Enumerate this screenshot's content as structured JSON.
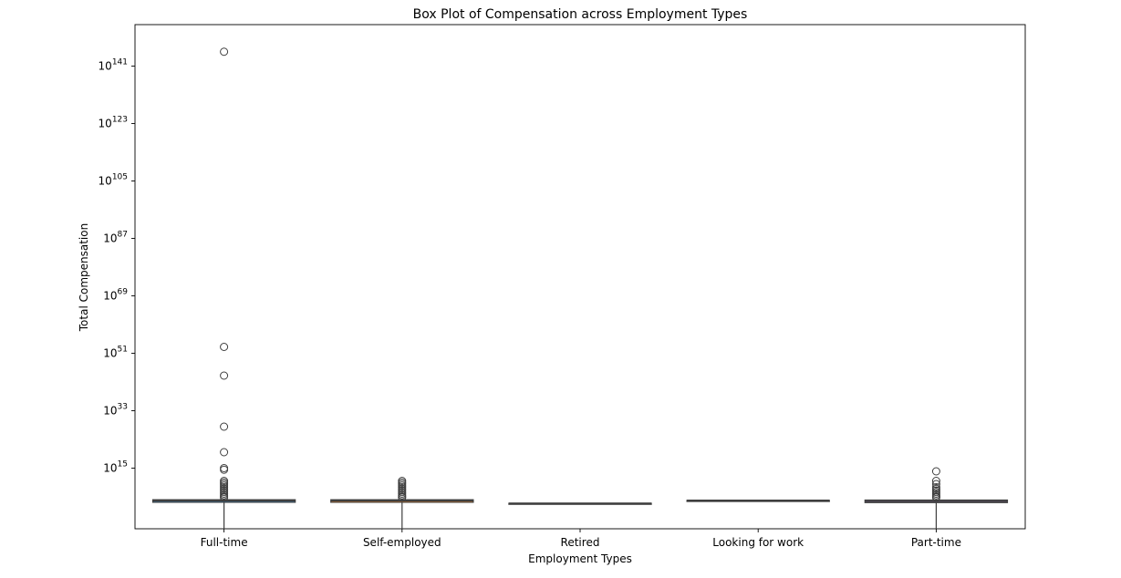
{
  "chart_data": {
    "type": "box",
    "title": "Box Plot of Compensation across Employment Types",
    "xlabel": "Employment Types",
    "ylabel": "Total Compensation",
    "yscale": "log",
    "ylim_exponent": [
      -4,
      154
    ],
    "yticks": [
      {
        "base": "10",
        "exp": "141"
      },
      {
        "base": "10",
        "exp": "123"
      },
      {
        "base": "10",
        "exp": "105"
      },
      {
        "base": "10",
        "exp": "87"
      },
      {
        "base": "10",
        "exp": "69"
      },
      {
        "base": "10",
        "exp": "51"
      },
      {
        "base": "10",
        "exp": "33"
      },
      {
        "base": "10",
        "exp": "15"
      }
    ],
    "categories": [
      "Full-time",
      "Self-employed",
      "Retired",
      "Looking for work",
      "Part-time"
    ],
    "boxes": [
      {
        "category": "Full-time",
        "whisker_low_exp": -4,
        "q1_exp": 4.3,
        "median_exp": 4.8,
        "q3_exp": 5.1,
        "whisker_high_exp": 5.3,
        "outliers_exp": [
          145.5,
          53,
          44,
          28,
          20,
          15,
          14.5,
          11,
          10.5,
          10,
          9.5,
          9,
          8.5,
          8,
          7.5,
          7,
          6.5,
          6,
          5.8
        ]
      },
      {
        "category": "Self-employed",
        "whisker_low_exp": -4,
        "q1_exp": 4.3,
        "median_exp": 4.8,
        "q3_exp": 5.1,
        "whisker_high_exp": 5.3,
        "outliers_exp": [
          11,
          10.5,
          10,
          9.5,
          9,
          8.5,
          8,
          7.5,
          7,
          6.5,
          6,
          5.8
        ]
      },
      {
        "category": "Retired",
        "whisker_low_exp": 4,
        "q1_exp": 4,
        "median_exp": 4,
        "q3_exp": 4,
        "whisker_high_exp": 4,
        "outliers_exp": []
      },
      {
        "category": "Looking for work",
        "whisker_low_exp": 4.9,
        "q1_exp": 4.9,
        "median_exp": 4.9,
        "q3_exp": 4.9,
        "whisker_high_exp": 4.9,
        "outliers_exp": []
      },
      {
        "category": "Part-time",
        "whisker_low_exp": -4,
        "q1_exp": 4.2,
        "median_exp": 4.6,
        "q3_exp": 5.0,
        "whisker_high_exp": 5.2,
        "outliers_exp": [
          14,
          11,
          10,
          9,
          8.5,
          8,
          7.5,
          7,
          6.5,
          6,
          5.8
        ]
      }
    ],
    "grid": false,
    "colors": {
      "Full-time": "#1f77b4",
      "Self-employed": "#ff7f0e",
      "Retired": "#2ca02c",
      "Looking for work": "#d62728",
      "Part-time": "#9467bd"
    }
  }
}
